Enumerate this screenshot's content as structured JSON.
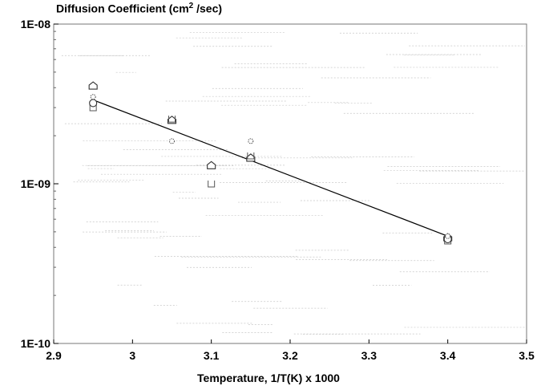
{
  "chart_data": {
    "type": "scatter",
    "title": "",
    "ylabel_prefix": "Diffusion Coefficient (cm",
    "ylabel_sup": "2",
    "ylabel_suffix": " /sec)",
    "xlabel": "Temperature,  1/T(K) x 1000",
    "xlim": [
      2.9,
      3.5
    ],
    "ylim": [
      1e-10,
      1e-08
    ],
    "yscale": "log",
    "grid": false,
    "x_ticks": [
      "2.9",
      "3",
      "3.1",
      "3.2",
      "3.3",
      "3.4",
      "3.5"
    ],
    "x_tick_values": [
      2.9,
      3.0,
      3.1,
      3.2,
      3.3,
      3.4,
      3.5
    ],
    "y_ticks": [
      "1E-10",
      "1E-09",
      "1E-08"
    ],
    "y_tick_values": [
      1e-10,
      1e-09,
      1e-08
    ],
    "series": [
      {
        "marker": "triangle",
        "x": [
          2.95,
          3.05,
          3.1,
          3.15,
          3.4
        ],
        "y": [
          4.1e-09,
          2.5e-09,
          1.3e-09,
          1.45e-09,
          4.6e-10
        ]
      },
      {
        "marker": "square",
        "x": [
          2.95,
          3.05,
          3.1,
          3.15,
          3.4
        ],
        "y": [
          3e-09,
          2.55e-09,
          1e-09,
          1.5e-09,
          4.4e-10
        ]
      },
      {
        "marker": "circle",
        "x": [
          2.95,
          3.4
        ],
        "y": [
          3.2e-09,
          4.5e-10
        ]
      },
      {
        "marker": "star",
        "x": [
          2.95,
          3.05,
          3.15,
          3.4
        ],
        "y": [
          3.5e-09,
          1.85e-09,
          1.85e-09,
          4.7e-10
        ]
      }
    ],
    "fit_line": {
      "x": [
        2.95,
        3.4
      ],
      "y": [
        3.35e-09,
        4.7e-10
      ]
    }
  }
}
